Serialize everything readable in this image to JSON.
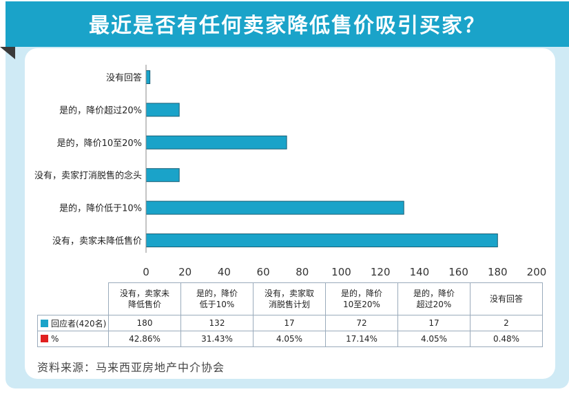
{
  "title": "最近是否有任何卖家降低售价吸引买家？",
  "colors": {
    "bar": "#1aa3c9",
    "header": "#1aa3c9",
    "percent_swatch": "#e02020"
  },
  "chart_data": {
    "type": "bar",
    "orientation": "horizontal",
    "categories": [
      "没有回答",
      "是的，降价超过20%",
      "是的，降价10至20%",
      "没有，卖家打消脱售的念头",
      "是的，降价低于10%",
      "没有，卖家未降低售价"
    ],
    "values": [
      2,
      17,
      72,
      17,
      132,
      180
    ],
    "xlim": [
      0,
      200
    ],
    "xticks": [
      "0",
      "20",
      "40",
      "60",
      "80",
      "100",
      "120",
      "140",
      "160",
      "180",
      "200"
    ]
  },
  "table": {
    "headers": [
      [
        "没有，卖家未",
        "降低售价"
      ],
      [
        "是的，降价",
        "低于10%"
      ],
      [
        "没有，卖家取",
        "消脱售计划"
      ],
      [
        "是的，降价",
        "10至20%"
      ],
      [
        "是的，降价",
        "超过20%"
      ],
      [
        "没有回答",
        ""
      ]
    ],
    "rows": [
      {
        "label": "回应者(420名)",
        "swatch": "bar",
        "values": [
          "180",
          "132",
          "17",
          "72",
          "17",
          "2"
        ]
      },
      {
        "label": "%",
        "swatch": "percent_swatch",
        "values": [
          "42.86%",
          "31.43%",
          "4.05%",
          "17.14%",
          "4.05%",
          "0.48%"
        ]
      }
    ]
  },
  "source": "资料来源：马来西亚房地产中介协会"
}
